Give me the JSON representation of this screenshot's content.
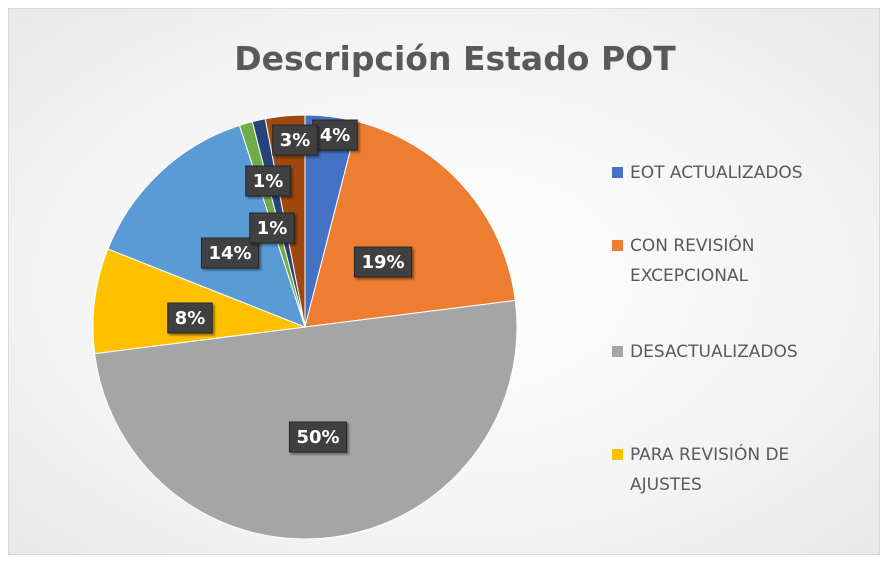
{
  "chart_data": {
    "type": "pie",
    "title": "Descripción Estado POT",
    "categories": [
      "EOT ACTUALIZADOS",
      "CON REVISIÓN EXCEPCIONAL",
      "DESACTUALIZADOS",
      "PARA REVISIÓN DE AJUSTES",
      null,
      null,
      null,
      null
    ],
    "values": [
      4,
      19,
      50,
      8,
      14,
      1,
      1,
      3
    ],
    "value_labels": [
      "4%",
      "19%",
      "50%",
      "8%",
      "14%",
      "1%",
      "1%",
      "3%"
    ],
    "colors": [
      "#4472c4",
      "#ed7d31",
      "#a5a5a5",
      "#ffc000",
      "#5b9bd5",
      "#70ad47",
      "#264478",
      "#9e480e"
    ],
    "legend": "right"
  }
}
